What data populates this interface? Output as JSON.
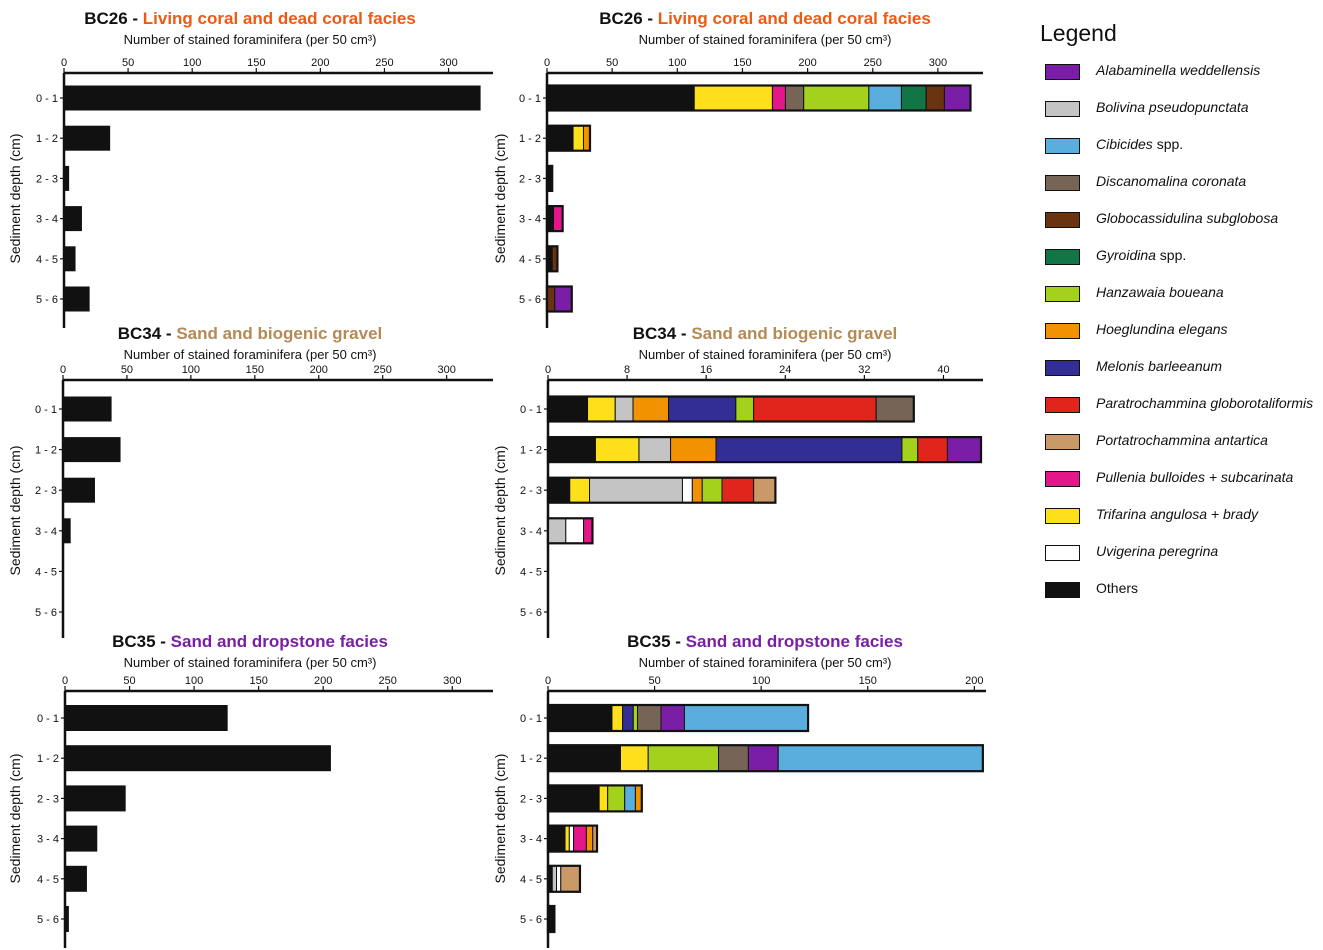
{
  "depth_label": "Sediment depth (cm)",
  "axis_label": "Number of stained foraminifera (per 50 cm³)",
  "legend": {
    "title": "Legend",
    "items": [
      {
        "key": "alab",
        "name": "Alabaminella weddellensis",
        "suffix": "",
        "color": "#7a1ea8"
      },
      {
        "key": "boli",
        "name": "Bolivina pseudopunctata",
        "suffix": "",
        "color": "#c4c4c4"
      },
      {
        "key": "cibi",
        "name": "Cibicides",
        "suffix": " spp.",
        "color": "#5aaedd"
      },
      {
        "key": "disc",
        "name": "Discanomalina coronata",
        "suffix": "",
        "color": "#766556"
      },
      {
        "key": "glob",
        "name": "Globocassidulina subglobosa",
        "suffix": "",
        "color": "#6b3410"
      },
      {
        "key": "gyro",
        "name": "Gyroidina",
        "suffix": " spp.",
        "color": "#127545"
      },
      {
        "key": "hanz",
        "name": "Hanzawaia boueana",
        "suffix": "",
        "color": "#a3d11c"
      },
      {
        "key": "hoeg",
        "name": "Hoeglundina elegans",
        "suffix": "",
        "color": "#f39200"
      },
      {
        "key": "melo",
        "name": "Melonis barleeanum",
        "suffix": "",
        "color": "#332e96"
      },
      {
        "key": "para",
        "name": "Paratrochammina globorotaliformis",
        "suffix": "",
        "color": "#e0261c"
      },
      {
        "key": "port",
        "name": "Portatrochammina antartica",
        "suffix": "",
        "color": "#c99a68"
      },
      {
        "key": "pull",
        "name": "Pullenia bulloides + subcarinata",
        "suffix": "",
        "color": "#e3178a"
      },
      {
        "key": "trif",
        "name": "Trifarina angulosa + brady",
        "suffix": "",
        "color": "#fde01a"
      },
      {
        "key": "uvig",
        "name": "Uvigerina peregrina",
        "suffix": "",
        "color": "#ffffff"
      },
      {
        "key": "other",
        "name": "Others",
        "suffix": "",
        "color": "#111111"
      }
    ]
  },
  "chart_data": [
    {
      "type": "bar",
      "orientation": "horizontal",
      "station": "BC26",
      "facies": "Living coral and dead coral facies",
      "facies_color": "#ef5a12",
      "xlim": [
        0,
        330
      ],
      "xticks": [
        0,
        50,
        100,
        150,
        200,
        250,
        300
      ],
      "categories": [
        "0 - 1",
        "1 - 2",
        "2 - 3",
        "3 - 4",
        "4 - 5",
        "5 - 6"
      ],
      "values": [
        325,
        36,
        4,
        14,
        9,
        20
      ]
    },
    {
      "type": "bar",
      "stacked": true,
      "orientation": "horizontal",
      "station": "BC26",
      "facies": "Living coral and dead coral facies",
      "facies_color": "#ef5a12",
      "xlim": [
        0,
        330
      ],
      "xticks": [
        0,
        50,
        100,
        150,
        200,
        250,
        300
      ],
      "categories": [
        "0 - 1",
        "1 - 2",
        "2 - 3",
        "3 - 4",
        "4 - 5",
        "5 - 6"
      ],
      "stacks": [
        [
          [
            "other",
            113
          ],
          [
            "trif",
            60
          ],
          [
            "pull",
            10
          ],
          [
            "disc",
            14
          ],
          [
            "hanz",
            50
          ],
          [
            "cibi",
            25
          ],
          [
            "gyro",
            19
          ],
          [
            "glob",
            14
          ],
          [
            "alab",
            20
          ]
        ],
        [
          [
            "other",
            20
          ],
          [
            "trif",
            8
          ],
          [
            "hoeg",
            5
          ]
        ],
        [
          [
            "other",
            4
          ]
        ],
        [
          [
            "other",
            5
          ],
          [
            "pull",
            7
          ]
        ],
        [
          [
            "other",
            4
          ],
          [
            "glob",
            4
          ]
        ],
        [
          [
            "glob",
            6
          ],
          [
            "alab",
            13
          ]
        ]
      ]
    },
    {
      "type": "bar",
      "orientation": "horizontal",
      "station": "BC34",
      "facies": "Sand and biogenic gravel",
      "facies_color": "#b48a57",
      "xlim": [
        0,
        330
      ],
      "xticks": [
        0,
        50,
        100,
        150,
        200,
        250,
        300
      ],
      "categories": [
        "0 - 1",
        "1 - 2",
        "2 - 3",
        "3 - 4",
        "4 - 5",
        "5 - 6"
      ],
      "values": [
        38,
        45,
        25,
        6,
        0,
        0
      ]
    },
    {
      "type": "bar",
      "stacked": true,
      "orientation": "horizontal",
      "station": "BC34",
      "facies": "Sand and biogenic gravel",
      "facies_color": "#b48a57",
      "xlim": [
        0,
        44
      ],
      "xticks": [
        0,
        8,
        16,
        24,
        32,
        40
      ],
      "categories": [
        "0 - 1",
        "1 - 2",
        "2 - 3",
        "3 - 4",
        "4 - 5",
        "5 - 6"
      ],
      "stacks": [
        [
          [
            "other",
            4
          ],
          [
            "trif",
            2.8
          ],
          [
            "boli",
            1.8
          ],
          [
            "hoeg",
            3.6
          ],
          [
            "melo",
            6.8
          ],
          [
            "hanz",
            1.8
          ],
          [
            "para",
            12.4
          ],
          [
            "disc",
            3.8
          ]
        ],
        [
          [
            "other",
            4.8
          ],
          [
            "trif",
            4.4
          ],
          [
            "boli",
            3.2
          ],
          [
            "hoeg",
            4.6
          ],
          [
            "melo",
            18.8
          ],
          [
            "hanz",
            1.6
          ],
          [
            "para",
            3
          ],
          [
            "alab",
            3.4
          ]
        ],
        [
          [
            "other",
            2.2
          ],
          [
            "trif",
            2
          ],
          [
            "boli",
            9.4
          ],
          [
            "uvig",
            1
          ],
          [
            "hoeg",
            1
          ],
          [
            "hanz",
            2
          ],
          [
            "para",
            3.2
          ],
          [
            "port",
            2.2
          ]
        ],
        [
          [
            "boli",
            1.8
          ],
          [
            "uvig",
            1.8
          ],
          [
            "pull",
            0.9
          ]
        ],
        [],
        []
      ]
    },
    {
      "type": "bar",
      "orientation": "horizontal",
      "station": "BC35",
      "facies": "Sand and dropstone facies",
      "facies_color": "#7a1ea8",
      "xlim": [
        0,
        330
      ],
      "xticks": [
        0,
        50,
        100,
        150,
        200,
        250,
        300
      ],
      "categories": [
        "0 - 1",
        "1 - 2",
        "2 - 3",
        "3 - 4",
        "4 - 5",
        "5 - 6"
      ],
      "values": [
        126,
        206,
        47,
        25,
        17,
        3
      ]
    },
    {
      "type": "bar",
      "stacked": true,
      "orientation": "horizontal",
      "station": "BC35",
      "facies": "Sand and dropstone facies",
      "facies_color": "#7a1ea8",
      "xlim": [
        0,
        205
      ],
      "xticks": [
        0,
        50,
        100,
        150,
        200
      ],
      "categories": [
        "0 - 1",
        "1 - 2",
        "2 - 3",
        "3 - 4",
        "4 - 5",
        "5 - 6"
      ],
      "stacks": [
        [
          [
            "other",
            30
          ],
          [
            "trif",
            5
          ],
          [
            "melo",
            5
          ],
          [
            "hanz",
            2
          ],
          [
            "disc",
            11
          ],
          [
            "alab",
            11
          ],
          [
            "cibi",
            58
          ]
        ],
        [
          [
            "other",
            34
          ],
          [
            "trif",
            13
          ],
          [
            "hanz",
            33
          ],
          [
            "disc",
            14
          ],
          [
            "alab",
            14
          ],
          [
            "cibi",
            96
          ]
        ],
        [
          [
            "other",
            24
          ],
          [
            "trif",
            4
          ],
          [
            "hanz",
            8
          ],
          [
            "cibi",
            5
          ],
          [
            "hoeg",
            3
          ]
        ],
        [
          [
            "other",
            8
          ],
          [
            "trif",
            2
          ],
          [
            "uvig",
            2
          ],
          [
            "pull",
            6
          ],
          [
            "hoeg",
            3
          ],
          [
            "port",
            2
          ]
        ],
        [
          [
            "other",
            2
          ],
          [
            "boli",
            2
          ],
          [
            "uvig",
            2
          ],
          [
            "port",
            9
          ]
        ],
        [
          [
            "other",
            3
          ]
        ]
      ]
    }
  ]
}
